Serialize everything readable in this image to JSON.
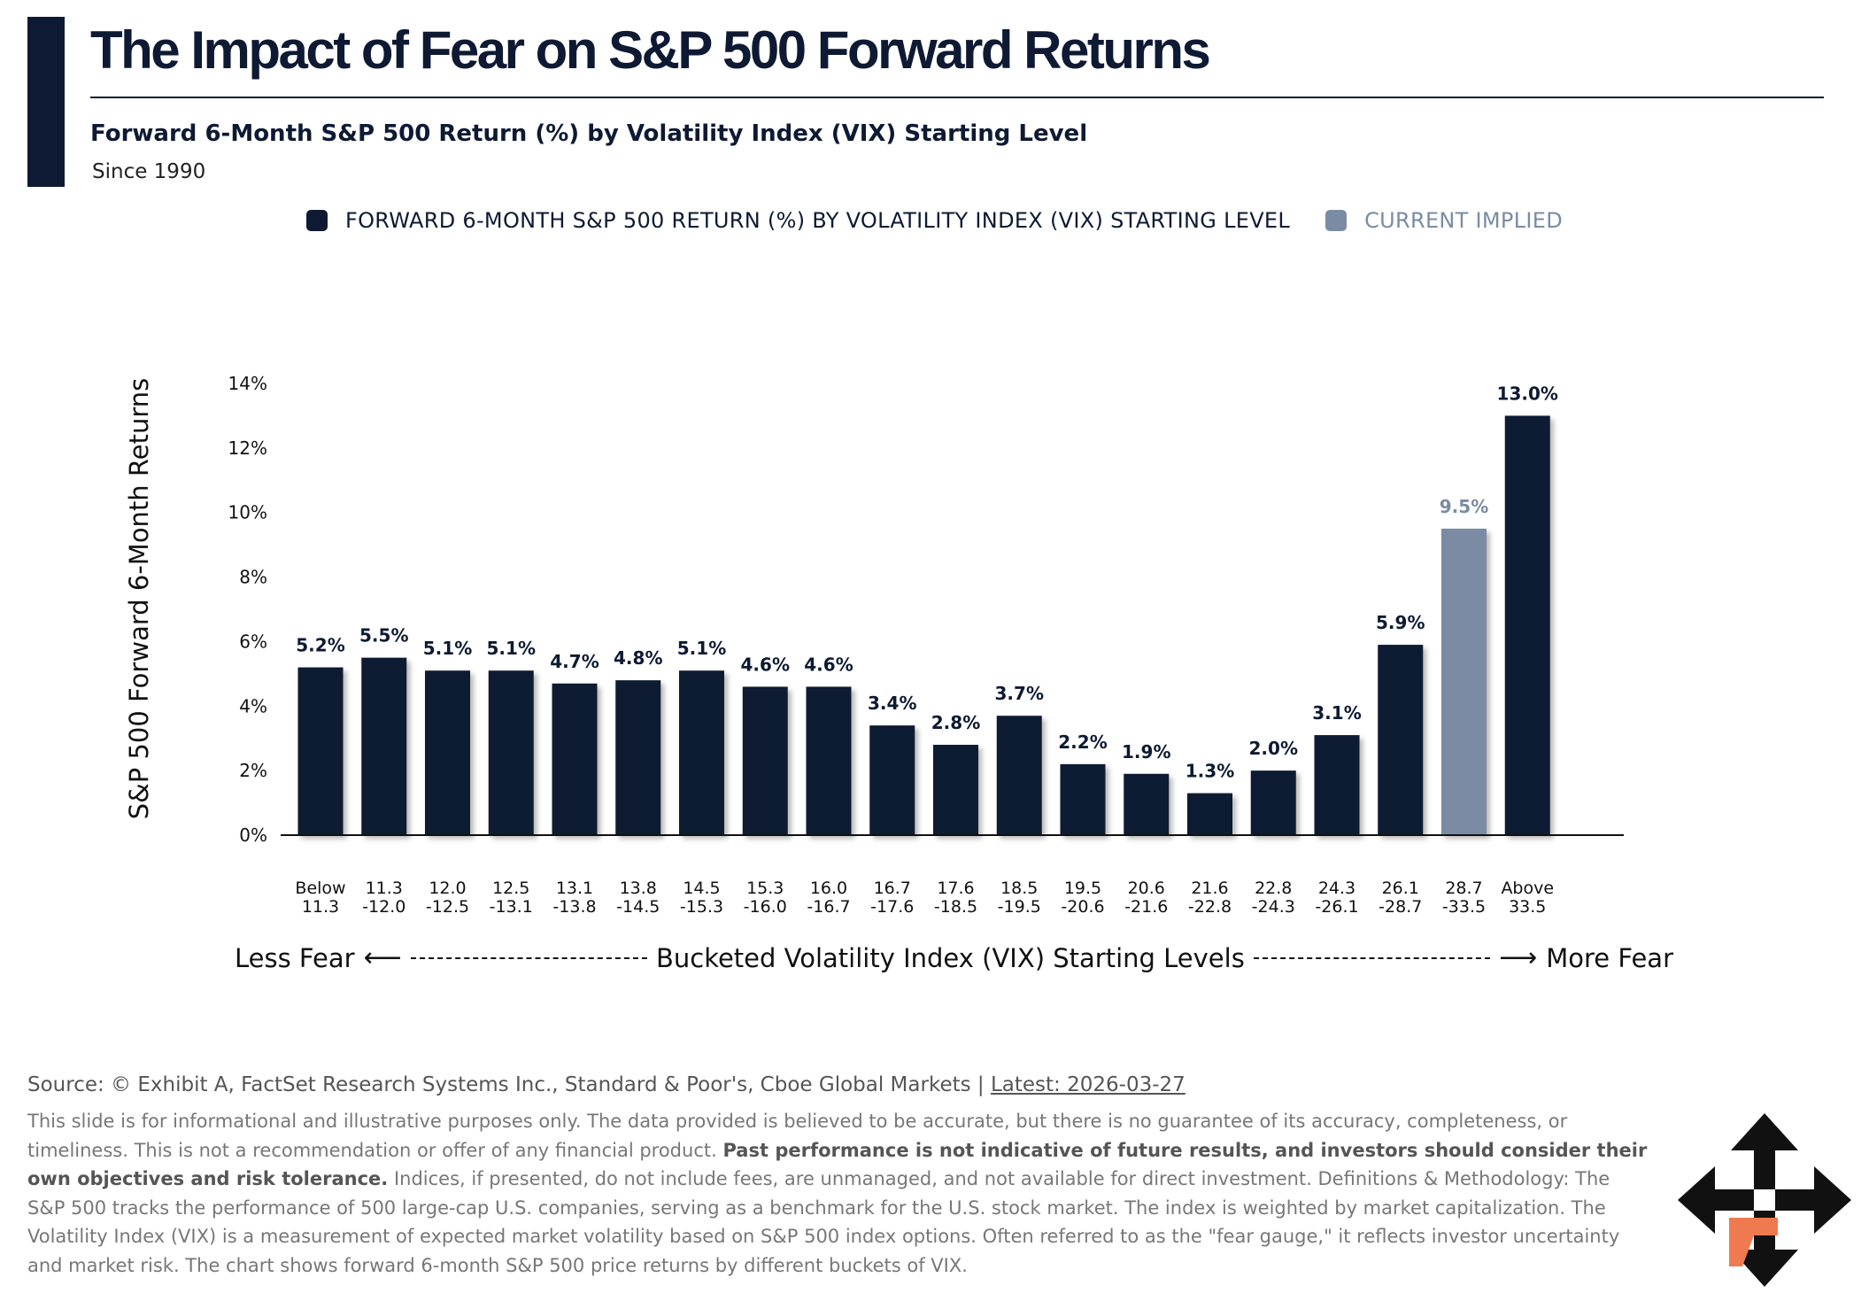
{
  "title": "The Impact of Fear on S&P 500 Forward Returns",
  "subtitle": "Forward 6-Month S&P 500 Return (%) by Volatility Index (VIX) Starting Level",
  "since": "Since 1990",
  "legend": {
    "series1": "FORWARD 6-MONTH S&P 500 RETURN (%) BY VOLATILITY INDEX (VIX) STARTING LEVEL",
    "series2": "CURRENT IMPLIED"
  },
  "colors": {
    "primary": "#0e1a33",
    "implied": "#7b8ba4",
    "implied_label": "#7b8ba4",
    "logo_accent": "#ef7a4f"
  },
  "axis_caption": {
    "left": "Less Fear",
    "center": "Bucketed Volatility Index (VIX) Starting Levels",
    "right": "More Fear"
  },
  "chart_data": {
    "type": "bar",
    "title": "Forward 6-Month S&P 500 Return (%) by Volatility Index (VIX) Starting Level",
    "ylabel": "S&P 500 Forward 6-Month Returns",
    "xlabel": "Bucketed Volatility Index (VIX) Starting Levels",
    "ylim": [
      0,
      14
    ],
    "yticks": [
      "0%",
      "2%",
      "4%",
      "6%",
      "8%",
      "10%",
      "12%",
      "14%"
    ],
    "categories": [
      [
        "Below",
        "11.3"
      ],
      [
        "11.3",
        "-12.0"
      ],
      [
        "12.0",
        "-12.5"
      ],
      [
        "12.5",
        "-13.1"
      ],
      [
        "13.1",
        "-13.8"
      ],
      [
        "13.8",
        "-14.5"
      ],
      [
        "14.5",
        "-15.3"
      ],
      [
        "15.3",
        "-16.0"
      ],
      [
        "16.0",
        "-16.7"
      ],
      [
        "16.7",
        "-17.6"
      ],
      [
        "17.6",
        "-18.5"
      ],
      [
        "18.5",
        "-19.5"
      ],
      [
        "19.5",
        "-20.6"
      ],
      [
        "20.6",
        "-21.6"
      ],
      [
        "21.6",
        "-22.8"
      ],
      [
        "22.8",
        "-24.3"
      ],
      [
        "24.3",
        "-26.1"
      ],
      [
        "26.1",
        "-28.7"
      ],
      [
        "28.7",
        "-33.5"
      ],
      [
        "Above",
        "33.5"
      ]
    ],
    "values": [
      5.2,
      5.5,
      5.1,
      5.1,
      4.7,
      4.8,
      5.1,
      4.6,
      4.6,
      3.4,
      2.8,
      3.7,
      2.2,
      1.9,
      1.3,
      2.0,
      3.1,
      5.9,
      9.5,
      13.0
    ],
    "labels": [
      "5.2%",
      "5.5%",
      "5.1%",
      "5.1%",
      "4.7%",
      "4.8%",
      "5.1%",
      "4.6%",
      "4.6%",
      "3.4%",
      "2.8%",
      "3.7%",
      "2.2%",
      "1.9%",
      "1.3%",
      "2.0%",
      "3.1%",
      "5.9%",
      "9.5%",
      "13.0%"
    ],
    "current_implied_index": 18
  },
  "footer": {
    "source": "Source: © Exhibit A, FactSet Research Systems Inc., Standard & Poor's, Cboe Global Markets",
    "separator": "|",
    "latest": "Latest: 2026-03-27",
    "disclaimer_1": "This slide is for informational and illustrative purposes only. The data provided is believed to be accurate, but there is no guarantee of its accuracy, completeness, or timeliness. This is not a recommendation or offer of any financial product.",
    "disclaimer_bold": "Past performance is not indicative of future results, and investors should consider their own objectives and risk tolerance.",
    "disclaimer_2": "Indices, if presented, do not include fees, are unmanaged, and not available for direct investment. Definitions & Methodology: The S&P 500 tracks the performance of 500 large-cap U.S. companies, serving as a benchmark for the U.S. stock market. The index is weighted by market capitalization. The Volatility Index (VIX) is a measurement of expected market volatility based on S&P 500 index options. Often referred to as the \"fear gauge,\" it reflects investor uncertainty and market risk. The chart shows forward 6-month S&P 500 price returns by different buckets of VIX."
  }
}
